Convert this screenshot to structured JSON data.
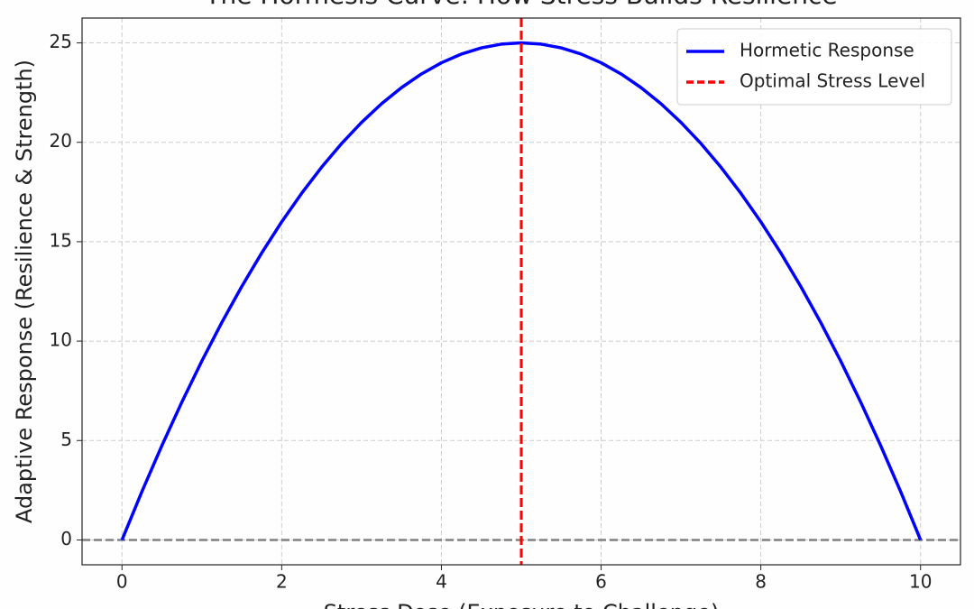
{
  "chart_data": {
    "type": "line",
    "title": "The Hormesis Curve: How Stress Builds Resilience",
    "xlabel": "Stress Dose (Exposure to Challenge)",
    "ylabel": "Adaptive Response (Resilience & Strength)",
    "x": [
      0,
      0.25,
      0.5,
      0.75,
      1,
      1.25,
      1.5,
      1.75,
      2,
      2.25,
      2.5,
      2.75,
      3,
      3.25,
      3.5,
      3.75,
      4,
      4.25,
      4.5,
      4.75,
      5,
      5.25,
      5.5,
      5.75,
      6,
      6.25,
      6.5,
      6.75,
      7,
      7.25,
      7.5,
      7.75,
      8,
      8.25,
      8.5,
      8.75,
      9,
      9.25,
      9.5,
      9.75,
      10
    ],
    "series": [
      {
        "name": "Hormetic Response",
        "color": "#0000ff",
        "values": [
          0,
          2.4375,
          4.75,
          6.9375,
          9,
          10.9375,
          12.75,
          14.4375,
          16,
          17.4375,
          18.75,
          19.9375,
          21,
          21.9375,
          22.75,
          23.4375,
          24,
          24.4375,
          24.75,
          24.9375,
          25,
          24.9375,
          24.75,
          24.4375,
          24,
          23.4375,
          22.75,
          21.9375,
          21,
          19.9375,
          18.75,
          17.4375,
          16,
          14.4375,
          12.75,
          10.9375,
          9,
          6.9375,
          4.75,
          2.4375,
          0
        ]
      }
    ],
    "vlines": [
      {
        "name": "Optimal Stress Level",
        "color": "#ff0000",
        "x": 5
      }
    ],
    "hlines": [
      {
        "value": 0,
        "color": "#808080"
      }
    ],
    "xlim": [
      -0.5,
      10.5
    ],
    "ylim": [
      -1.25,
      26.25
    ],
    "xticks": [
      0,
      2,
      4,
      6,
      8,
      10
    ],
    "yticks": [
      0,
      5,
      10,
      15,
      20,
      25
    ],
    "grid": true,
    "legend": "upper right"
  }
}
